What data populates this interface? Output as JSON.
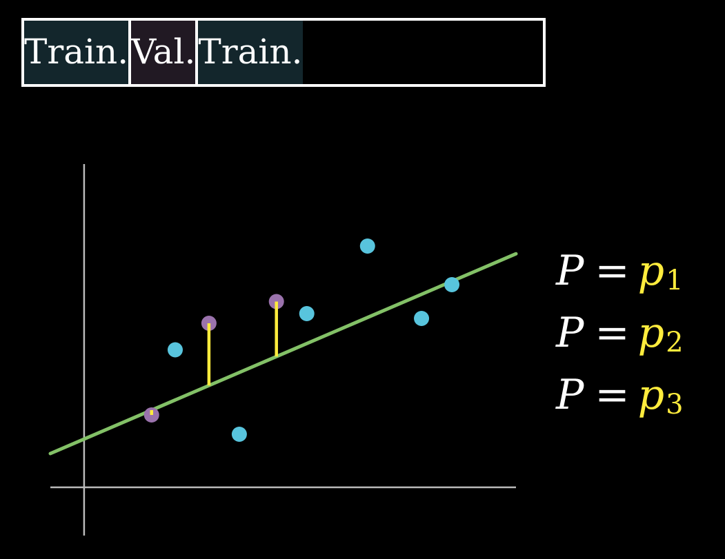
{
  "folds": [
    {
      "label": "Train.",
      "role": "train",
      "color": "#13262c"
    },
    {
      "label": "Val.",
      "role": "validation",
      "color": "#211923"
    },
    {
      "label": "Train.",
      "role": "train",
      "color": "#13262c"
    }
  ],
  "colors": {
    "train_point": "#58c4dd",
    "validation_point": "#9a72ac",
    "fit_line": "#83c167",
    "residual": "#ffec3d",
    "axes": "#bbbbbb"
  },
  "chart_data": {
    "type": "scatter",
    "fit_line": {
      "slope": 0.6,
      "intercept": 1.0,
      "x_range": [
        -0.5,
        6.4
      ]
    },
    "training_points": [
      {
        "x": 1.35,
        "y": 2.85
      },
      {
        "x": 2.3,
        "y": 1.1
      },
      {
        "x": 3.3,
        "y": 3.6
      },
      {
        "x": 4.2,
        "y": 5.0
      },
      {
        "x": 5.0,
        "y": 3.5
      },
      {
        "x": 5.45,
        "y": 4.2
      }
    ],
    "validation_points": [
      {
        "x": 1.0,
        "y": 1.5
      },
      {
        "x": 1.85,
        "y": 3.4
      },
      {
        "x": 2.85,
        "y": 3.85
      }
    ],
    "xlim": [
      -0.5,
      6.4
    ],
    "ylim": [
      -1.0,
      6.7
    ],
    "grid": false
  },
  "equations": [
    {
      "lhs": "P",
      "op": "=",
      "var": "p",
      "sub": "1"
    },
    {
      "lhs": "P",
      "op": "=",
      "var": "p",
      "sub": "2"
    },
    {
      "lhs": "P",
      "op": "=",
      "var": "p",
      "sub": "3"
    }
  ]
}
